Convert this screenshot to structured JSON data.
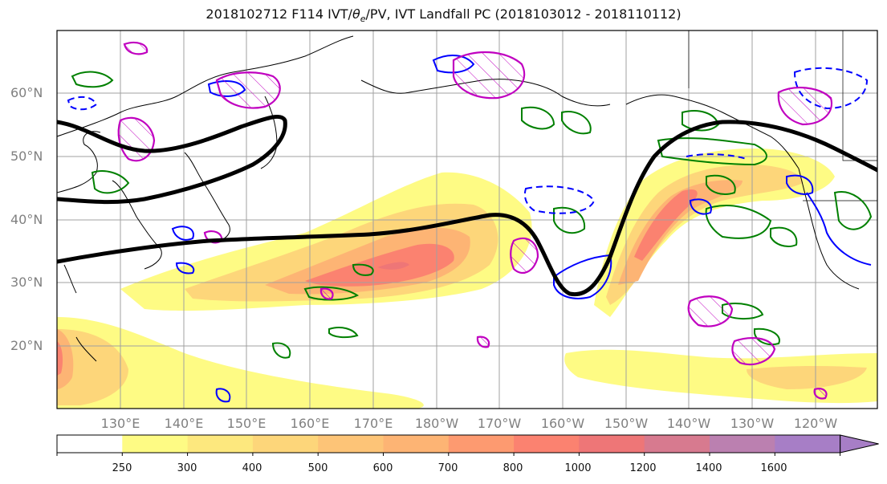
{
  "title": {
    "prefix": "2018102712 F114 IVT/",
    "theta": "θ",
    "theta_sub": "e",
    "suffix": "/PV, IVT Landfall PC (2018103012 - 2018110112)"
  },
  "map": {
    "projection": "equirectangular",
    "lon_range": [
      "120°E",
      "115°W"
    ],
    "lat_range": [
      "10°N",
      "70°N"
    ],
    "gridlines": true,
    "coastlines": true,
    "lat_labels": [
      "60°N",
      "50°N",
      "40°N",
      "30°N",
      "20°N"
    ],
    "lon_labels": [
      "130°E",
      "140°E",
      "150°E",
      "160°E",
      "170°E",
      "180°W",
      "170°W",
      "160°W",
      "150°W",
      "140°W",
      "130°W",
      "120°W"
    ],
    "fields": {
      "ivt_fill": "IVT (shaded, yellow-red-purple)",
      "pc_contour": "black thick line",
      "green_contours": "#008000",
      "blue_contours": "#0000ff",
      "magenta_hatched": "#c000c0"
    }
  },
  "colorbar": {
    "levels": [
      "250",
      "300",
      "400",
      "500",
      "600",
      "700",
      "800",
      "1000",
      "1200",
      "1400",
      "1600"
    ],
    "colors": [
      "#ffffff",
      "#fefb84",
      "#fde87e",
      "#fdd67a",
      "#fdc477",
      "#fdb474",
      "#fd9a70",
      "#fb8270",
      "#ee7677",
      "#d77a8f",
      "#bb80b0",
      "#a77ec6"
    ],
    "extend": "max"
  },
  "colors": {
    "green": "#008000",
    "blue": "#0000ff",
    "magenta": "#c000c0",
    "black": "#000000",
    "grid": "#a0a0a0",
    "label": "#808080"
  }
}
